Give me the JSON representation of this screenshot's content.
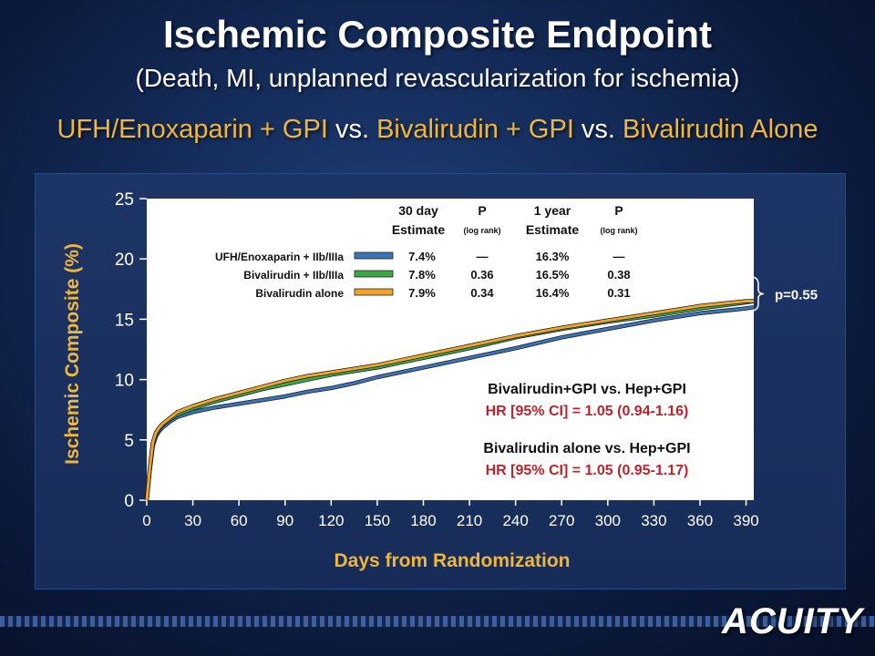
{
  "slide": {
    "title": "Ischemic Composite Endpoint",
    "subtitle": "(Death, MI, unplanned revascularization for ischemia)",
    "comparison": {
      "arm1": "UFH/Enoxaparin + GPI",
      "sep1": " vs. ",
      "arm2": "Bivalirudin + GPI",
      "sep2": " vs. ",
      "arm3": "Bivalirudin Alone"
    },
    "logo": "ACUITY"
  },
  "colors": {
    "ufh": "#3a73b8",
    "bival_gpi": "#3aa845",
    "bival_alone": "#f0a52a",
    "axis_label": "#f0b63c",
    "hr_red": "#c0222a",
    "plot_bg": "#ffffff"
  },
  "chart_data": {
    "type": "line",
    "xlabel": "Days from Randomization",
    "ylabel": "Ischemic Composite (%)",
    "xlim": [
      0,
      395
    ],
    "ylim": [
      0,
      25
    ],
    "xticks": [
      0,
      30,
      60,
      90,
      120,
      150,
      180,
      210,
      240,
      270,
      300,
      330,
      360,
      390
    ],
    "yticks": [
      0,
      5,
      10,
      15,
      20,
      25
    ],
    "series": [
      {
        "name": "UFH/Enoxaparin + IIb/IIIa",
        "color": "#3a73b8",
        "x": [
          0,
          2,
          4,
          6,
          8,
          10,
          15,
          20,
          30,
          45,
          60,
          75,
          90,
          105,
          120,
          135,
          150,
          165,
          180,
          210,
          240,
          270,
          300,
          330,
          360,
          390,
          395
        ],
        "y": [
          0,
          2.5,
          4.5,
          5.3,
          5.7,
          6.0,
          6.5,
          6.9,
          7.3,
          7.7,
          8.0,
          8.3,
          8.6,
          9.0,
          9.3,
          9.7,
          10.2,
          10.6,
          11.0,
          11.8,
          12.6,
          13.5,
          14.2,
          14.9,
          15.5,
          15.9,
          16.0
        ]
      },
      {
        "name": "Bivalirudin + IIb/IIIa",
        "color": "#3aa845",
        "x": [
          0,
          2,
          4,
          6,
          8,
          10,
          15,
          20,
          30,
          45,
          60,
          75,
          90,
          105,
          120,
          135,
          150,
          165,
          180,
          210,
          240,
          270,
          300,
          330,
          360,
          390,
          395
        ],
        "y": [
          0,
          2.6,
          4.7,
          5.5,
          5.9,
          6.2,
          6.7,
          7.1,
          7.6,
          8.2,
          8.7,
          9.2,
          9.6,
          10.0,
          10.4,
          10.7,
          11.0,
          11.4,
          11.8,
          12.6,
          13.5,
          14.2,
          14.8,
          15.3,
          15.9,
          16.4,
          16.5
        ]
      },
      {
        "name": "Bivalirudin alone",
        "color": "#f0a52a",
        "x": [
          0,
          2,
          4,
          6,
          8,
          10,
          15,
          20,
          30,
          45,
          60,
          75,
          90,
          105,
          120,
          135,
          150,
          165,
          180,
          210,
          240,
          270,
          300,
          330,
          360,
          390,
          395
        ],
        "y": [
          0,
          2.7,
          4.8,
          5.6,
          6.0,
          6.3,
          6.8,
          7.3,
          7.8,
          8.4,
          8.9,
          9.4,
          9.9,
          10.3,
          10.6,
          10.9,
          11.2,
          11.6,
          12.0,
          12.8,
          13.6,
          14.3,
          14.9,
          15.5,
          16.1,
          16.5,
          16.5
        ]
      }
    ],
    "legend_table": {
      "headers": [
        {
          "line1": "30 day",
          "line2": "Estimate"
        },
        {
          "line1": "P",
          "line2": "(log rank)"
        },
        {
          "line1": "1 year",
          "line2": "Estimate"
        },
        {
          "line1": "P",
          "line2": "(log rank)"
        }
      ],
      "rows": [
        {
          "label": "UFH/Enoxaparin + IIb/IIIa",
          "est30": "7.4%",
          "p30": "—",
          "est1y": "16.3%",
          "p1y": "—"
        },
        {
          "label": "Bivalirudin + IIb/IIIa",
          "est30": "7.8%",
          "p30": "0.36",
          "est1y": "16.5%",
          "p1y": "0.38"
        },
        {
          "label": "Bivalirudin alone",
          "est30": "7.9%",
          "p30": "0.34",
          "est1y": "16.4%",
          "p1y": "0.31"
        }
      ]
    },
    "annotations": {
      "bracket_p": "p=0.55",
      "hr1_title": "Bivalirudin+GPI vs. Hep+GPI",
      "hr1_value": "HR [95% CI] = 1.05 (0.94-1.16)",
      "hr2_title": "Bivalirudin alone vs. Hep+GPI",
      "hr2_value": "HR [95% CI] = 1.05 (0.95-1.17)"
    }
  }
}
